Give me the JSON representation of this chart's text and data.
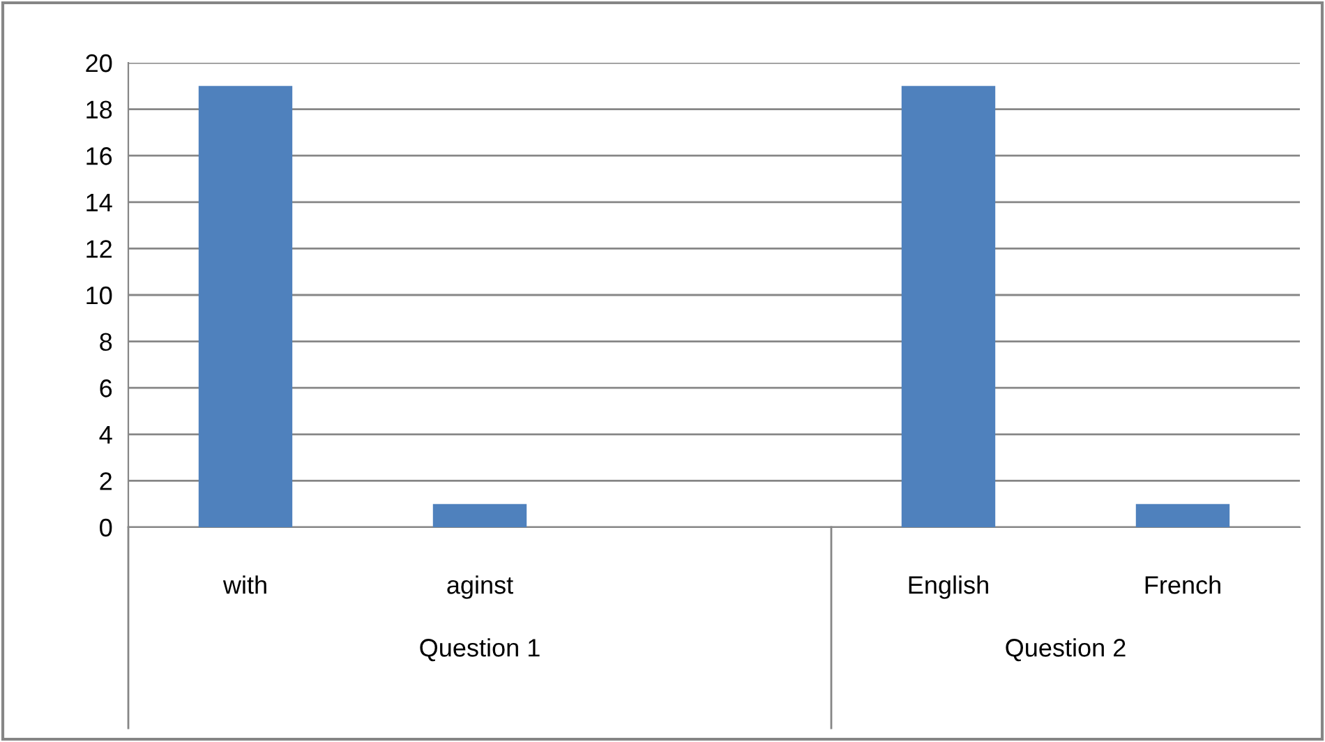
{
  "chart_data": {
    "type": "bar",
    "categories": [
      "with",
      "aginst",
      null,
      "English",
      "French"
    ],
    "values": [
      19,
      1,
      null,
      19,
      1
    ],
    "color": "#4f81bd",
    "ylim": [
      0,
      20
    ],
    "yticks": [
      0,
      2,
      4,
      6,
      8,
      10,
      12,
      14,
      16,
      18,
      20
    ],
    "grid": "y",
    "annotations": [
      "Question 1",
      "Question 2"
    ]
  }
}
